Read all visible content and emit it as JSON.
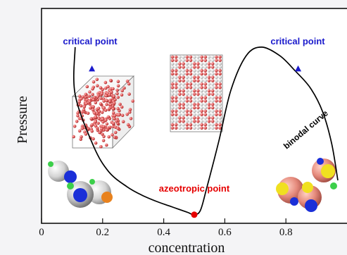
{
  "chart_data": {
    "type": "line",
    "xlabel": "concentration",
    "ylabel": "Pressure",
    "xlim": [
      0,
      1
    ],
    "x_ticks": [
      "0",
      "0.2",
      "0.4",
      "0.6",
      "0.8"
    ],
    "x_tick_values": [
      0,
      0.2,
      0.4,
      0.6,
      0.8
    ],
    "grid": false,
    "series": [
      {
        "name": "binodal curve",
        "color": "#000000",
        "x": [
          0.11,
          0.11,
          0.17,
          0.22,
          0.28,
          0.33,
          0.38,
          0.42,
          0.46,
          0.48,
          0.5,
          0.52,
          0.54,
          0.58,
          0.62,
          0.67,
          0.72,
          0.78,
          0.83,
          0.88,
          0.92,
          0.95,
          0.97
        ],
        "y": [
          0.82,
          0.6,
          0.36,
          0.24,
          0.17,
          0.13,
          0.1,
          0.08,
          0.06,
          0.05,
          0.04,
          0.06,
          0.16,
          0.38,
          0.62,
          0.78,
          0.82,
          0.78,
          0.71,
          0.63,
          0.52,
          0.37,
          0.2
        ]
      }
    ],
    "points": [
      {
        "label": "critical point",
        "x": 0.165,
        "y": 0.72,
        "marker": "triangle",
        "color": "#1a1acc"
      },
      {
        "label": "critical point",
        "x": 0.84,
        "y": 0.72,
        "marker": "triangle",
        "color": "#1a1acc"
      },
      {
        "label": "azeotropic point",
        "x": 0.5,
        "y": 0.04,
        "marker": "circle",
        "color": "#e60000"
      }
    ],
    "annotations": {
      "critical_left": "critical point",
      "critical_right": "critical point",
      "azeotropic": "azeotropic point",
      "binodal": "binodal curve"
    },
    "colors": {
      "critical": "#1a1acc",
      "azeotropic": "#e60000",
      "curve": "#000000",
      "particles": "#e05a5a"
    }
  }
}
